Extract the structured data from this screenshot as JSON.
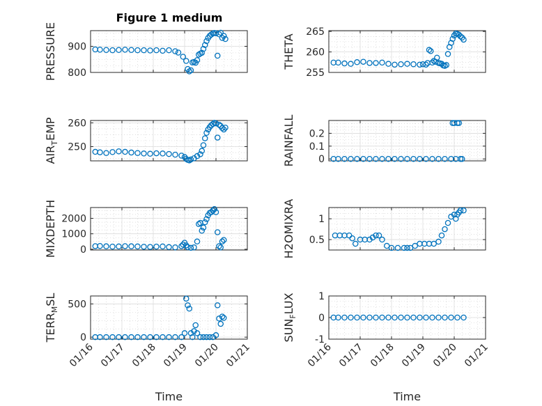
{
  "figure_title": "Figure 1 medium",
  "colors": {
    "marker": "#0072bd",
    "axis": "#262626",
    "grid": "#dcdcdc"
  },
  "chart_data": [
    {
      "type": "scatter",
      "ylabel": "PRESSURE",
      "ylabel_sub": "",
      "ylabel_tail": "",
      "xlabel": "",
      "xlim": [
        16.0,
        21.0
      ],
      "ylim": [
        800,
        960
      ],
      "yticks": [
        800,
        900
      ],
      "ytick_labels": [
        "800",
        "900"
      ],
      "xticks": [
        16,
        17,
        18,
        19,
        20,
        21
      ],
      "xtick_labels": [],
      "grid": true,
      "minor_grid": true,
      "x": [
        16.15,
        16.3,
        16.5,
        16.7,
        16.9,
        17.1,
        17.3,
        17.5,
        17.7,
        17.9,
        18.1,
        18.3,
        18.5,
        18.7,
        18.8,
        18.95,
        19.05,
        19.1,
        19.15,
        19.2,
        19.25,
        19.3,
        19.35,
        19.4,
        19.45,
        19.5,
        19.55,
        19.6,
        19.65,
        19.7,
        19.75,
        19.8,
        19.85,
        19.9,
        19.95,
        20.0,
        20.05,
        20.1,
        20.15,
        20.2,
        20.25,
        20.3
      ],
      "y": [
        888,
        887,
        886,
        885,
        886,
        887,
        886,
        885,
        885,
        884,
        885,
        883,
        885,
        881,
        876,
        860,
        844,
        813,
        804,
        808,
        838,
        840,
        837,
        847,
        868,
        872,
        875,
        890,
        905,
        920,
        932,
        940,
        945,
        949,
        951,
        950,
        864,
        946,
        952,
        932,
        940,
        928
      ]
    },
    {
      "type": "scatter",
      "ylabel": "AIR",
      "ylabel_sub": "T",
      "ylabel_tail": "EMP",
      "xlabel": "",
      "xlim": [
        16.0,
        21.0
      ],
      "ylim": [
        244,
        261
      ],
      "yticks": [
        250,
        260
      ],
      "ytick_labels": [
        "250",
        "260"
      ],
      "xticks": [
        16,
        17,
        18,
        19,
        20,
        21
      ],
      "xtick_labels": [],
      "grid": true,
      "minor_grid": true,
      "x": [
        16.15,
        16.3,
        16.5,
        16.7,
        16.9,
        17.1,
        17.3,
        17.5,
        17.7,
        17.9,
        18.1,
        18.3,
        18.5,
        18.7,
        18.9,
        19.0,
        19.05,
        19.1,
        19.15,
        19.2,
        19.3,
        19.4,
        19.5,
        19.55,
        19.6,
        19.65,
        19.7,
        19.75,
        19.8,
        19.85,
        19.9,
        19.95,
        20.0,
        20.05,
        20.1,
        20.15,
        20.2,
        20.25,
        20.3
      ],
      "y": [
        247.8,
        247.6,
        247.3,
        247.7,
        248.0,
        247.8,
        247.5,
        247.3,
        247.1,
        247.0,
        247.2,
        247.1,
        246.9,
        246.6,
        246.2,
        245.6,
        244.8,
        244.4,
        244.2,
        244.6,
        245.1,
        246.0,
        246.8,
        248.2,
        250.6,
        253.5,
        255.8,
        257.2,
        258.2,
        259.0,
        259.5,
        260.0,
        259.8,
        253.8,
        259.2,
        258.7,
        257.8,
        257.2,
        258.0
      ]
    },
    {
      "type": "scatter",
      "ylabel": "MIXDEPTH",
      "ylabel_sub": "",
      "ylabel_tail": "",
      "xlabel": "",
      "xlim": [
        16.0,
        21.0
      ],
      "ylim": [
        -50,
        2700
      ],
      "yticks": [
        0,
        1000,
        2000
      ],
      "ytick_labels": [
        "0",
        "1000",
        "2000"
      ],
      "xticks": [
        16,
        17,
        18,
        19,
        20,
        21
      ],
      "xtick_labels": [],
      "grid": true,
      "minor_grid": true,
      "x": [
        16.15,
        16.3,
        16.5,
        16.7,
        16.9,
        17.1,
        17.3,
        17.5,
        17.7,
        17.9,
        18.1,
        18.3,
        18.5,
        18.7,
        18.9,
        18.95,
        19.0,
        19.05,
        19.1,
        19.2,
        19.3,
        19.4,
        19.45,
        19.5,
        19.55,
        19.6,
        19.65,
        19.7,
        19.75,
        19.8,
        19.85,
        19.9,
        19.95,
        20.0,
        20.05,
        20.1,
        20.15,
        20.2,
        20.25
      ],
      "y": [
        200,
        210,
        190,
        170,
        180,
        200,
        190,
        180,
        160,
        150,
        170,
        180,
        140,
        120,
        200,
        300,
        420,
        250,
        130,
        90,
        120,
        500,
        1630,
        1700,
        1200,
        1400,
        1750,
        1950,
        2200,
        2350,
        2400,
        2500,
        2600,
        2400,
        1100,
        200,
        120,
        500,
        600
      ]
    },
    {
      "type": "scatter",
      "ylabel": "TERR",
      "ylabel_sub": "M",
      "ylabel_tail": "SL",
      "xlabel": "Time",
      "xlim": [
        16.0,
        21.0
      ],
      "ylim": [
        -30,
        620
      ],
      "yticks": [
        0,
        500
      ],
      "ytick_labels": [
        "0",
        "500"
      ],
      "xticks": [
        16,
        17,
        18,
        19,
        20,
        21
      ],
      "xtick_labels": [
        "01/16",
        "01/17",
        "01/18",
        "01/19",
        "01/20",
        "01/21"
      ],
      "grid": true,
      "minor_grid": true,
      "x": [
        16.15,
        16.3,
        16.5,
        16.7,
        16.9,
        17.1,
        17.3,
        17.5,
        17.7,
        17.9,
        18.1,
        18.3,
        18.5,
        18.7,
        18.9,
        19.0,
        19.05,
        19.1,
        19.15,
        19.2,
        19.25,
        19.3,
        19.35,
        19.4,
        19.5,
        19.6,
        19.7,
        19.8,
        19.9,
        20.0,
        20.05,
        20.1,
        20.15,
        20.2,
        20.25
      ],
      "y": [
        0,
        0,
        0,
        0,
        0,
        0,
        0,
        0,
        0,
        0,
        0,
        0,
        0,
        0,
        0,
        60,
        580,
        480,
        430,
        60,
        0,
        90,
        180,
        60,
        0,
        0,
        0,
        0,
        0,
        30,
        480,
        280,
        200,
        310,
        290
      ]
    },
    {
      "type": "scatter",
      "ylabel": "THETA",
      "ylabel_sub": "",
      "ylabel_tail": "",
      "xlabel": "",
      "xlim": [
        16.0,
        21.0
      ],
      "ylim": [
        255,
        265.2
      ],
      "yticks": [
        255,
        260,
        265
      ],
      "ytick_labels": [
        "255",
        "260",
        "265"
      ],
      "xticks": [
        16,
        17,
        18,
        19,
        20,
        21
      ],
      "xtick_labels": [],
      "grid": true,
      "minor_grid": true,
      "x": [
        16.15,
        16.3,
        16.5,
        16.7,
        16.9,
        17.1,
        17.3,
        17.5,
        17.7,
        17.9,
        18.1,
        18.3,
        18.5,
        18.7,
        18.9,
        19.0,
        19.1,
        19.15,
        19.2,
        19.25,
        19.3,
        19.35,
        19.4,
        19.45,
        19.5,
        19.55,
        19.6,
        19.65,
        19.7,
        19.75,
        19.8,
        19.85,
        19.9,
        19.95,
        20.0,
        20.05,
        20.1,
        20.15,
        20.2,
        20.25,
        20.3
      ],
      "y": [
        257.4,
        257.4,
        257.2,
        257.1,
        257.5,
        257.6,
        257.3,
        257.3,
        257.4,
        257.1,
        256.9,
        257.0,
        257.1,
        257.0,
        256.9,
        257.0,
        256.9,
        257.3,
        260.5,
        260.2,
        257.4,
        257.8,
        257.6,
        258.6,
        257.3,
        257.2,
        257.1,
        256.7,
        256.6,
        256.8,
        259.5,
        261.2,
        262.2,
        263.2,
        264.0,
        264.5,
        264.4,
        264.2,
        263.8,
        263.5,
        263.0
      ]
    },
    {
      "type": "scatter",
      "ylabel": "RAINFALL",
      "ylabel_sub": "",
      "ylabel_tail": "",
      "xlabel": "",
      "xlim": [
        16.0,
        21.0
      ],
      "ylim": [
        -0.015,
        0.3
      ],
      "yticks": [
        0,
        0.1,
        0.2
      ],
      "ytick_labels": [
        "0",
        "0.1",
        "0.2"
      ],
      "xticks": [
        16,
        17,
        18,
        19,
        20,
        21
      ],
      "xtick_labels": [],
      "grid": true,
      "minor_grid": true,
      "x": [
        16.15,
        16.3,
        16.5,
        16.7,
        16.9,
        17.1,
        17.3,
        17.5,
        17.7,
        17.9,
        18.1,
        18.3,
        18.5,
        18.7,
        18.9,
        19.1,
        19.3,
        19.5,
        19.7,
        19.9,
        19.95,
        20.0,
        20.05,
        20.1,
        20.15,
        20.2,
        20.25
      ],
      "y": [
        0,
        0,
        0,
        0,
        0,
        0,
        0,
        0,
        0,
        0,
        0,
        0,
        0,
        0,
        0,
        0,
        0,
        0,
        0,
        0,
        0.28,
        0.28,
        0,
        0.28,
        0.28,
        0,
        0
      ]
    },
    {
      "type": "scatter",
      "ylabel": "H2OMIXRA",
      "ylabel_sub": "",
      "ylabel_tail": "",
      "xlabel": "",
      "xlim": [
        16.0,
        21.0
      ],
      "ylim": [
        0.25,
        1.27
      ],
      "yticks": [
        0.5,
        1
      ],
      "ytick_labels": [
        "0.5",
        "1"
      ],
      "xticks": [
        16,
        17,
        18,
        19,
        20,
        21
      ],
      "xtick_labels": [],
      "grid": true,
      "minor_grid": true,
      "x": [
        16.2,
        16.35,
        16.5,
        16.65,
        16.75,
        16.85,
        17.0,
        17.15,
        17.3,
        17.4,
        17.5,
        17.6,
        17.7,
        17.85,
        18.0,
        18.2,
        18.4,
        18.5,
        18.6,
        18.75,
        18.9,
        19.05,
        19.2,
        19.35,
        19.5,
        19.6,
        19.7,
        19.8,
        19.9,
        20.0,
        20.05,
        20.1,
        20.15,
        20.2,
        20.3
      ],
      "y": [
        0.6,
        0.6,
        0.6,
        0.6,
        0.53,
        0.4,
        0.5,
        0.5,
        0.5,
        0.55,
        0.6,
        0.6,
        0.5,
        0.35,
        0.3,
        0.3,
        0.3,
        0.3,
        0.3,
        0.35,
        0.4,
        0.4,
        0.4,
        0.4,
        0.45,
        0.6,
        0.75,
        0.9,
        1.05,
        1.1,
        1.0,
        1.1,
        1.15,
        1.2,
        1.2
      ]
    },
    {
      "type": "scatter",
      "ylabel": "SUN",
      "ylabel_sub": "F",
      "ylabel_tail": "LUX",
      "xlabel": "Time",
      "xlim": [
        16.0,
        21.0
      ],
      "ylim": [
        -1,
        1
      ],
      "yticks": [
        -1,
        0,
        1
      ],
      "ytick_labels": [
        "-1",
        "0",
        "1"
      ],
      "xticks": [
        16,
        17,
        18,
        19,
        20,
        21
      ],
      "xtick_labels": [
        "01/16",
        "01/17",
        "01/18",
        "01/19",
        "01/20",
        "01/21"
      ],
      "grid": true,
      "minor_grid": true,
      "x": [
        16.15,
        16.3,
        16.5,
        16.7,
        16.9,
        17.1,
        17.3,
        17.5,
        17.7,
        17.9,
        18.1,
        18.3,
        18.5,
        18.7,
        18.9,
        19.1,
        19.3,
        19.5,
        19.7,
        19.9,
        20.1,
        20.3
      ],
      "y": [
        0,
        0,
        0,
        0,
        0,
        0,
        0,
        0,
        0,
        0,
        0,
        0,
        0,
        0,
        0,
        0,
        0,
        0,
        0,
        0,
        0,
        0
      ]
    }
  ]
}
